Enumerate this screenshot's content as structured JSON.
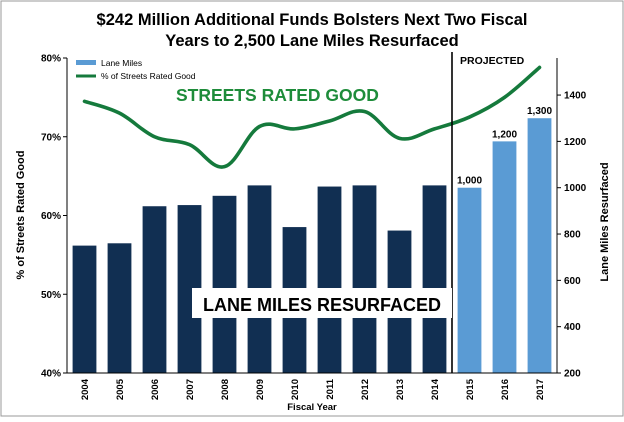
{
  "chart_data": {
    "type": "bar",
    "title_line1": "$242 Million Additional Funds Bolsters Next Two Fiscal",
    "title_line2": "Years to 2,500 Lane Miles Resurfaced",
    "xlabel": "Fiscal Year",
    "ylabel_left": "% of Streets Rated Good",
    "ylabel_right": "Lane Miles Resurfaced",
    "categories": [
      "2004",
      "2005",
      "2006",
      "2007",
      "2008",
      "2009",
      "2010",
      "2011",
      "2012",
      "2013",
      "2014",
      "2015",
      "2016",
      "2017"
    ],
    "series": [
      {
        "name": "Lane Miles",
        "kind": "bar",
        "axis": "right",
        "values": [
          750,
          760,
          920,
          925,
          965,
          1010,
          830,
          1005,
          1010,
          815,
          1010,
          1000,
          1200,
          1300
        ],
        "projected_from_index": 11,
        "data_labels": {
          "11": "1,000",
          "12": "1,200",
          "13": "1,300"
        }
      },
      {
        "name": "% of Streets Rated Good",
        "kind": "line",
        "axis": "left",
        "values": [
          74.5,
          73.0,
          70.0,
          69.0,
          66.2,
          71.3,
          71.0,
          72.0,
          73.2,
          69.8,
          71.0,
          72.5,
          75.0,
          78.8
        ]
      }
    ],
    "ylim_left": [
      40,
      80
    ],
    "yticks_left": [
      "40%",
      "50%",
      "60%",
      "70%",
      "80%"
    ],
    "ylim_right": [
      200,
      1560
    ],
    "yticks_right": [
      "200",
      "400",
      "600",
      "800",
      "1000",
      "1200",
      "1400"
    ],
    "annotations": {
      "streets_rated_good": "STREETS RATED GOOD",
      "lane_miles_resurfaced": "LANE MILES RESURFACED",
      "projected": "PROJECTED"
    },
    "legend_placement": "top-left",
    "colors": {
      "bar_actual": "#112f52",
      "bar_projected": "#5a9bd4",
      "line": "#157a3c",
      "streets_text": "#1e8c3a"
    },
    "grid": false
  }
}
